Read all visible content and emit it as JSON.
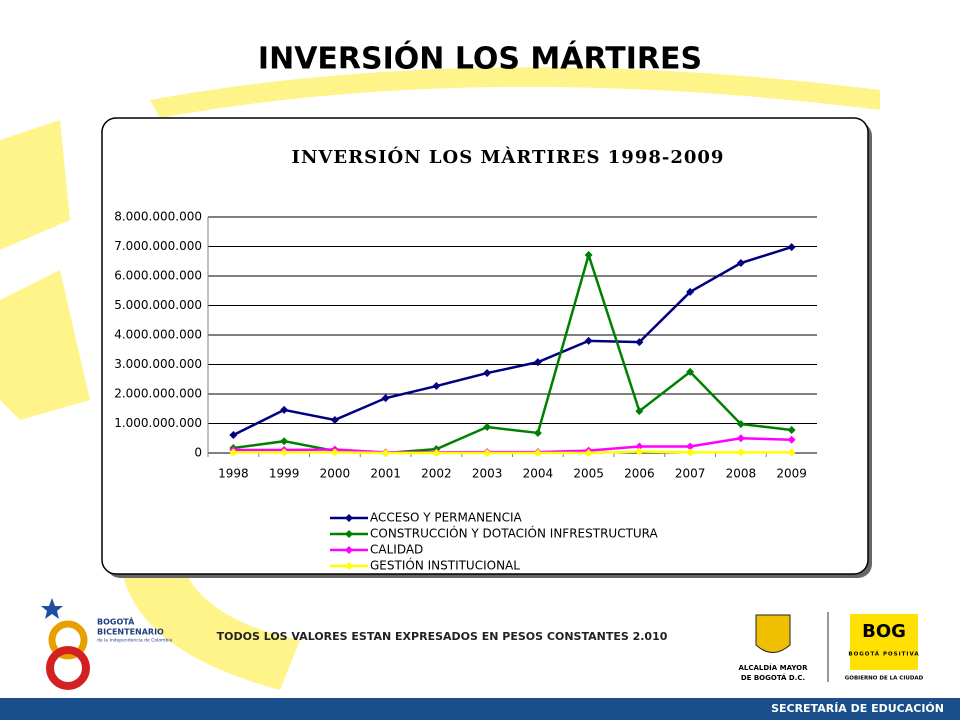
{
  "slide": {
    "title": "INVERSIÓN  LOS MÁRTIRES",
    "note": "TODOS LOS VALORES ESTAN EXPRESADOS EN PESOS CONSTANTES 2.010",
    "logo_left": [
      "BOGOTÁ",
      "BICENTENARIO",
      "de la Independencia de Colombia"
    ],
    "logo_mid": [
      "ALCALDÍA MAYOR",
      "DE BOGOTÁ D.C."
    ],
    "logo_right": [
      "BOG",
      "BOGOTÁ POSITIVA",
      "GOBIERNO DE LA CIUDAD"
    ],
    "footer": "SECRETARÍA DE EDUCACIÓN"
  },
  "chart_data": {
    "type": "line",
    "title": "INVERSIÓN LOS MÀRTIRES 1998-2009",
    "categories": [
      "1998",
      "1999",
      "2000",
      "2001",
      "2002",
      "2003",
      "2004",
      "2005",
      "2006",
      "2007",
      "2008",
      "2009"
    ],
    "series": [
      {
        "name": "ACCESO Y PERMANENCIA",
        "color": "#000080",
        "values": [
          610000000,
          1460000000,
          1120000000,
          1860000000,
          2270000000,
          2710000000,
          3080000000,
          3800000000,
          3760000000,
          5460000000,
          6440000000,
          6980000000
        ]
      },
      {
        "name": "CONSTRUCCIÓN Y DOTACIÓN INFRESTRUCTURA",
        "color": "#008000",
        "values": [
          170000000,
          400000000,
          70000000,
          0,
          130000000,
          880000000,
          680000000,
          6710000000,
          1420000000,
          2750000000,
          980000000,
          780000000
        ]
      },
      {
        "name": "CALIDAD",
        "color": "#ff00ff",
        "values": [
          100000000,
          100000000,
          120000000,
          20000000,
          20000000,
          30000000,
          30000000,
          80000000,
          220000000,
          220000000,
          500000000,
          450000000
        ]
      },
      {
        "name": "GESTIÓN INSTITUCIONAL",
        "color": "#ffff00",
        "values": [
          20000000,
          20000000,
          20000000,
          0,
          0,
          0,
          0,
          0,
          50000000,
          20000000,
          20000000,
          20000000
        ]
      }
    ],
    "ylim": [
      0,
      8000000000
    ],
    "yticks": [
      0,
      {
        "value": 1000000000,
        "label": "1.000.000.000"
      },
      {
        "value": 2000000000,
        "label": "2.000.000.000"
      },
      {
        "value": 3000000000,
        "label": "3.000.000.000"
      },
      {
        "value": 4000000000,
        "label": "4.000.000.000"
      },
      {
        "value": 5000000000,
        "label": "5.000.000.000"
      },
      {
        "value": 6000000000,
        "label": "6.000.000.000"
      },
      {
        "value": 7000000000,
        "label": "7.000.000.000"
      },
      {
        "value": 8000000000,
        "label": "8.000.000.000"
      }
    ],
    "grid": true
  }
}
